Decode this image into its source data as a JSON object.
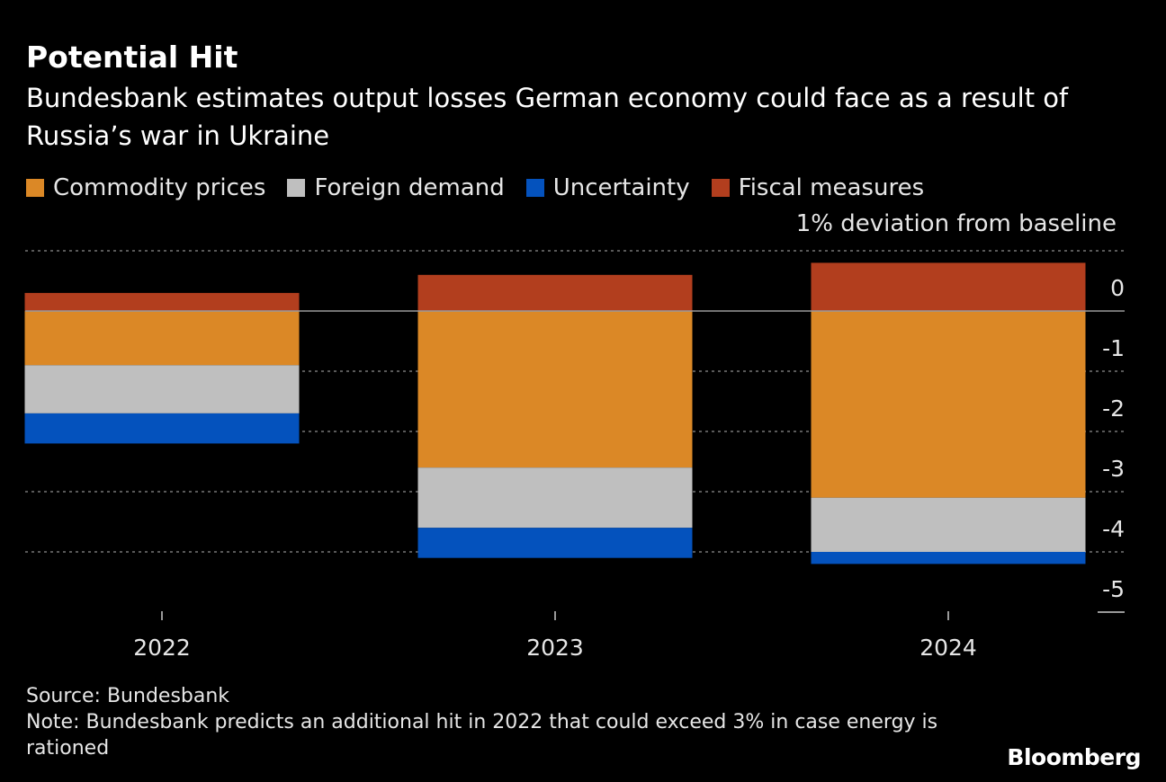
{
  "header": {
    "title": "Potential Hit",
    "subtitle": "Bundesbank estimates output losses German economy could face as a result of Russia’s war in Ukraine"
  },
  "chart_data": {
    "type": "bar",
    "stacked": true,
    "title": "Potential Hit",
    "subtitle": "Bundesbank estimates output losses German economy could face as a result of Russia’s war in Ukraine",
    "ylabel": "1% deviation from baseline",
    "categories": [
      "2022",
      "2023",
      "2024"
    ],
    "series": [
      {
        "name": "Commodity prices",
        "color": "#db8826",
        "values": [
          -0.9,
          -2.6,
          -3.1
        ]
      },
      {
        "name": "Foreign demand",
        "color": "#bfbfbf",
        "values": [
          -0.8,
          -1.0,
          -0.9
        ]
      },
      {
        "name": "Uncertainty",
        "color": "#0452bd",
        "values": [
          -0.5,
          -0.5,
          -0.2
        ]
      },
      {
        "name": "Fiscal measures",
        "color": "#b23e1e",
        "values": [
          0.3,
          0.6,
          0.8
        ]
      }
    ],
    "ylim": [
      -5,
      1
    ],
    "yticks": [
      "0",
      "-1",
      "-2",
      "-3",
      "-4",
      "-5"
    ],
    "grid": true,
    "y_axis_side": "right",
    "legend_placement": "top-left"
  },
  "footer": {
    "source": "Source: Bundesbank",
    "note": "Note: Bundesbank predicts an additional hit in 2022 that could exceed 3% in case energy is rationed",
    "logo": "Bloomberg"
  }
}
